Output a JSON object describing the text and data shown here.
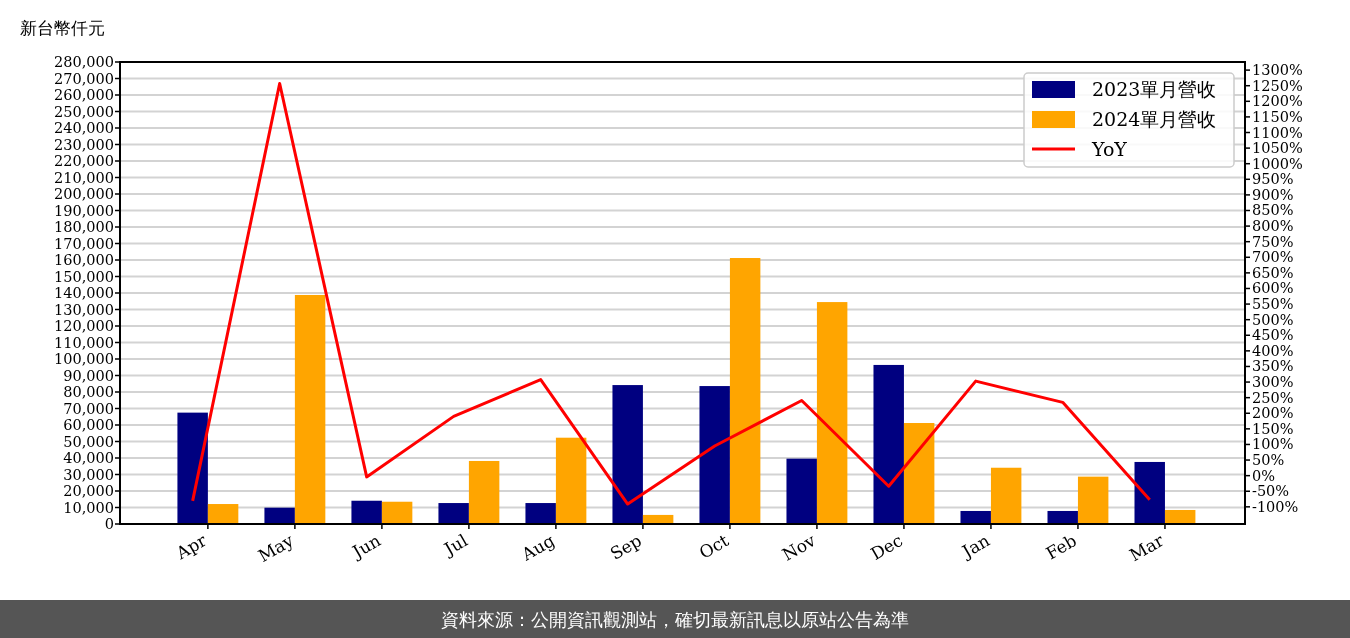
{
  "chart_data": {
    "type": "bar",
    "ylabel": "新台幣仟元",
    "categories": [
      "Apr",
      "May",
      "Jun",
      "Jul",
      "Aug",
      "Sep",
      "Oct",
      "Nov",
      "Dec",
      "Jan",
      "Feb",
      "Mar"
    ],
    "series": [
      {
        "name": "2023單月營收",
        "color": "#000080",
        "values": [
          67500,
          9900,
          14100,
          12700,
          12700,
          84200,
          83600,
          39600,
          96400,
          7900,
          7900,
          37600
        ]
      },
      {
        "name": "2024單月營收",
        "color": "#ffa500",
        "values": [
          12100,
          138800,
          13500,
          38200,
          52300,
          5500,
          161200,
          134500,
          61200,
          34100,
          28700,
          8500
        ]
      },
      {
        "name": "YoY",
        "type": "line",
        "axis": "y2",
        "color": "#ff0000",
        "values": [
          -81,
          1257,
          -4,
          190,
          308,
          -91,
          95,
          241,
          -34,
          303,
          235,
          -77
        ]
      }
    ],
    "ylim": [
      0,
      280000
    ],
    "yticks": [
      0,
      {
        "value": 10000,
        "label": "10,000"
      },
      {
        "value": 20000,
        "label": "20,000"
      },
      {
        "value": 30000,
        "label": "30,000"
      },
      {
        "value": 40000,
        "label": "40,000"
      },
      {
        "value": 50000,
        "label": "50,000"
      },
      {
        "value": 60000,
        "label": "60,000"
      },
      {
        "value": 70000,
        "label": "70,000"
      },
      {
        "value": 80000,
        "label": "80,000"
      },
      {
        "value": 90000,
        "label": "90,000"
      },
      {
        "value": 100000,
        "label": "100,000"
      },
      {
        "value": 110000,
        "label": "110,000"
      },
      {
        "value": 120000,
        "label": "120,000"
      },
      {
        "value": 130000,
        "label": "130,000"
      },
      {
        "value": 140000,
        "label": "140,000"
      },
      {
        "value": 150000,
        "label": "150,000"
      },
      {
        "value": 160000,
        "label": "160,000"
      },
      {
        "value": 170000,
        "label": "170,000"
      },
      {
        "value": 180000,
        "label": "180,000"
      },
      {
        "value": 190000,
        "label": "190,000"
      },
      {
        "value": 200000,
        "label": "200,000"
      },
      {
        "value": 210000,
        "label": "210,000"
      },
      {
        "value": 220000,
        "label": "220,000"
      },
      {
        "value": 230000,
        "label": "230,000"
      },
      {
        "value": 240000,
        "label": "240,000"
      },
      {
        "value": 250000,
        "label": "250,000"
      },
      {
        "value": 260000,
        "label": "260,000"
      },
      {
        "value": 270000,
        "label": "270,000"
      },
      {
        "value": 280000,
        "label": "280,000"
      }
    ],
    "y2lim": [
      -155,
      1326
    ],
    "y2ticks": [
      {
        "value": -100,
        "label": "-100%"
      },
      {
        "value": -50,
        "label": "-50%"
      },
      {
        "value": 0,
        "label": "0%"
      },
      {
        "value": 50,
        "label": "50%"
      },
      {
        "value": 100,
        "label": "100%"
      },
      {
        "value": 150,
        "label": "150%"
      },
      {
        "value": 200,
        "label": "200%"
      },
      {
        "value": 250,
        "label": "250%"
      },
      {
        "value": 300,
        "label": "300%"
      },
      {
        "value": 350,
        "label": "350%"
      },
      {
        "value": 400,
        "label": "400%"
      },
      {
        "value": 450,
        "label": "450%"
      },
      {
        "value": 500,
        "label": "500%"
      },
      {
        "value": 550,
        "label": "550%"
      },
      {
        "value": 600,
        "label": "600%"
      },
      {
        "value": 650,
        "label": "650%"
      },
      {
        "value": 700,
        "label": "700%"
      },
      {
        "value": 750,
        "label": "750%"
      },
      {
        "value": 800,
        "label": "800%"
      },
      {
        "value": 850,
        "label": "850%"
      },
      {
        "value": 900,
        "label": "900%"
      },
      {
        "value": 950,
        "label": "950%"
      },
      {
        "value": 1000,
        "label": "1000%"
      },
      {
        "value": 1050,
        "label": "1050%"
      },
      {
        "value": 1100,
        "label": "1100%"
      },
      {
        "value": 1150,
        "label": "1150%"
      },
      {
        "value": 1200,
        "label": "1200%"
      },
      {
        "value": 1250,
        "label": "1250%"
      },
      {
        "value": 1300,
        "label": "1300%"
      }
    ],
    "grid": "y",
    "legend": "top right",
    "line_style": "solid",
    "annotations": [
      "資料來源：公開資訊觀測站，確切最新訊息以原站公告為準"
    ]
  }
}
